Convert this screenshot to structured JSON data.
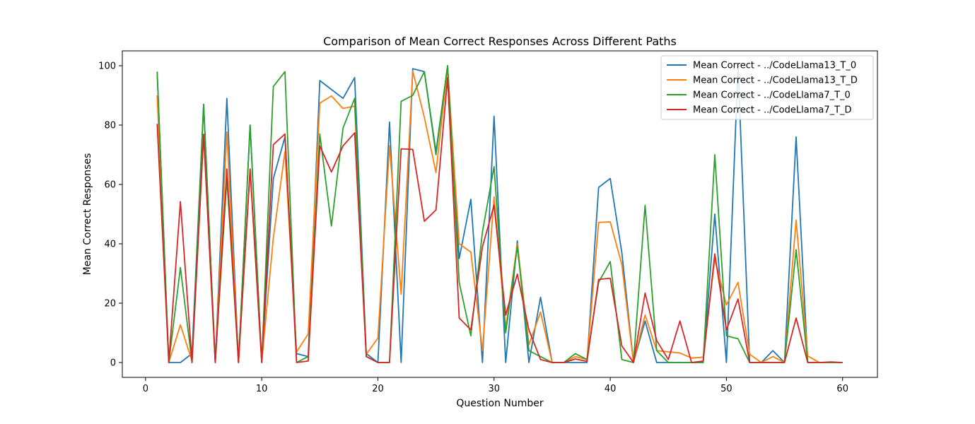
{
  "chart_data": {
    "type": "line",
    "title": "Comparison of Mean Correct Responses Across Different Paths",
    "xlabel": "Question Number",
    "ylabel": "Mean Correct Responses",
    "xlim": [
      -2,
      63
    ],
    "ylim": [
      -5,
      105
    ],
    "xticks": [
      0,
      10,
      20,
      30,
      40,
      50,
      60
    ],
    "yticks": [
      0,
      20,
      40,
      60,
      80,
      100
    ],
    "grid": false,
    "legend_position": "top-right",
    "x": [
      1,
      2,
      3,
      4,
      5,
      6,
      7,
      8,
      9,
      10,
      11,
      12,
      13,
      14,
      15,
      16,
      17,
      18,
      19,
      20,
      21,
      22,
      23,
      24,
      25,
      26,
      27,
      28,
      29,
      30,
      31,
      32,
      33,
      34,
      35,
      36,
      37,
      38,
      39,
      40,
      41,
      42,
      43,
      44,
      45,
      46,
      47,
      48,
      49,
      50,
      51,
      52,
      53,
      54,
      55,
      56,
      57,
      58,
      59,
      60
    ],
    "series": [
      {
        "name": "Mean Correct - ../CodeLlama13_T_0",
        "color": "#1f77b4",
        "values": [
          98,
          0,
          0,
          3,
          87,
          0,
          89,
          0,
          80,
          0,
          62,
          76,
          3,
          2,
          95,
          92,
          89,
          96,
          3,
          0,
          81,
          0,
          99,
          98,
          71,
          100,
          35,
          55,
          0,
          83,
          0,
          41,
          0,
          22,
          0,
          0,
          0,
          0,
          59,
          62,
          37,
          0,
          14,
          0,
          0,
          0,
          0,
          0,
          50,
          0,
          100,
          0,
          0,
          4,
          0,
          76,
          0,
          0,
          0,
          0
        ]
      },
      {
        "name": "Mean Correct - ../CodeLlama13_T_D",
        "color": "#ff7f0e",
        "values": [
          90,
          0,
          12.7,
          0.5,
          77,
          0,
          77.7,
          0,
          65,
          0,
          42,
          71,
          3.6,
          9.6,
          87.4,
          89.8,
          85.6,
          86.4,
          2.8,
          8.2,
          73,
          23,
          98.2,
          82.6,
          64,
          99.4,
          40,
          37.2,
          4,
          55.8,
          11.4,
          40,
          6,
          17,
          0,
          0,
          2,
          1,
          47.2,
          47.4,
          33,
          0,
          16,
          4,
          3.6,
          3.2,
          1.5,
          1.8,
          35,
          19.4,
          27,
          2.8,
          0,
          2,
          0,
          48,
          2.2,
          0,
          0,
          0
        ]
      },
      {
        "name": "Mean Correct - ../CodeLlama7_T_0",
        "color": "#2ca02c",
        "values": [
          98,
          0,
          32,
          0,
          87,
          0,
          62,
          0,
          80,
          0,
          93,
          98,
          0,
          2,
          77,
          46,
          79,
          89,
          2,
          0,
          0,
          88,
          90,
          98,
          70,
          100,
          27,
          9,
          44,
          66,
          10,
          39,
          4,
          2,
          0,
          0,
          3,
          1,
          27,
          34,
          1,
          0,
          53,
          4,
          0,
          0,
          0,
          0,
          70,
          9,
          8,
          0,
          0,
          0,
          0,
          38,
          0,
          0,
          0,
          0
        ]
      },
      {
        "name": "Mean Correct - ../CodeLlama7_T_D",
        "color": "#d62728",
        "values": [
          80.4,
          0,
          54.2,
          0,
          76.8,
          0,
          65.2,
          0,
          65.2,
          0,
          73.4,
          77,
          0,
          0.5,
          73,
          64.2,
          73,
          77.4,
          2,
          0,
          0,
          72,
          71.8,
          47.6,
          51.4,
          96,
          15,
          11,
          39,
          53,
          16,
          29.8,
          11,
          1,
          0,
          0,
          1.2,
          0.4,
          28,
          28.4,
          5.6,
          0,
          23.4,
          7.4,
          1,
          14,
          0,
          0.5,
          36.6,
          11,
          21.4,
          0,
          0,
          0,
          0,
          15,
          0,
          0,
          0.2,
          0
        ]
      }
    ]
  }
}
